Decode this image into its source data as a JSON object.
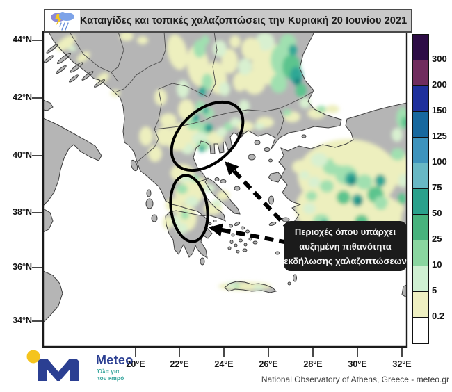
{
  "title_bar": {
    "title": "Καταιγίδες και τοπικές χαλαζοπτώσεις την Κυριακή 20 Ιουνίου 2021",
    "icon": "storm-cloud-lightning-icon"
  },
  "map": {
    "lat_labels": [
      "44°N",
      "42°N",
      "40°N",
      "38°N",
      "36°N",
      "34°N"
    ],
    "lon_labels": [
      "20°E",
      "22°E",
      "24°E",
      "26°E",
      "28°E",
      "30°E",
      "32°E"
    ],
    "colors": {
      "land": "#b5b5b5",
      "sea": "#ffffff",
      "frame": "#1b1b1b",
      "country_border": "#4a4a4a",
      "annotation": "#000000"
    },
    "annotation": {
      "line1": "Περιοχές όπου υπάρχει",
      "line2": "αυξημένη πιθανότητα",
      "line3": "εκδήλωσης χαλαζοπτώσεων"
    }
  },
  "colorbar": {
    "labels": [
      "300",
      "200",
      "150",
      "125",
      "100",
      "75",
      "50",
      "25",
      "10",
      "5",
      "0.2"
    ],
    "colors": [
      "#2d0c45",
      "#702c5e",
      "#1f309c",
      "#17689e",
      "#3d93bd",
      "#68b8c5",
      "#2aa18c",
      "#47b27d",
      "#8ad6a0",
      "#cff0d2",
      "#eff0c2",
      "#ffffff"
    ]
  },
  "logo": {
    "name": "Meteo",
    "tagline_line1": "Όλα για",
    "tagline_line2": "τον καιρό",
    "brand_blue": "#2b3f92",
    "brand_yellow": "#f5c41d",
    "brand_teal": "#3aa79f"
  },
  "footer": {
    "credit": "National Observatory of Athens, Greece - meteo.gr"
  }
}
